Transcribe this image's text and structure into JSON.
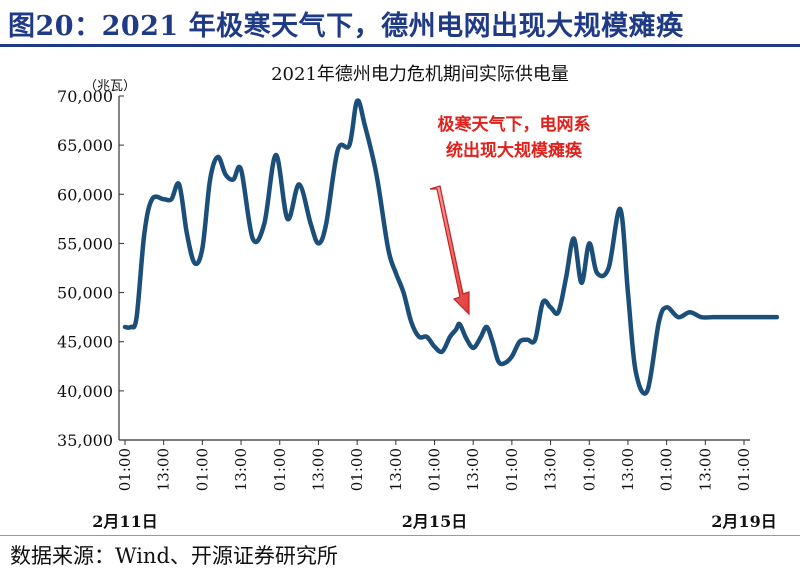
{
  "figure": {
    "label": "图20：2021 年极寒天气下，德州电网出现大规模瘫痪",
    "source": "数据来源：Wind、开源证券研究所",
    "accent_color": "#1f3a86"
  },
  "chart_data": {
    "type": "line",
    "title": "2021年德州电力危机期间实际供电量",
    "ylabel": "（兆瓦）",
    "xlabel": "",
    "ylim": [
      35000,
      70000
    ],
    "yticks": [
      35000,
      40000,
      45000,
      50000,
      55000,
      60000,
      65000,
      70000
    ],
    "ytick_labels": [
      "35,000",
      "40,000",
      "45,000",
      "50,000",
      "55,000",
      "60,000",
      "65,000",
      "70,000"
    ],
    "xtick_labels": [
      "01:00",
      "13:00",
      "01:00",
      "13:00",
      "01:00",
      "13:00",
      "01:00",
      "13:00",
      "01:00",
      "13:00",
      "01:00",
      "13:00",
      "01:00",
      "13:00",
      "01:00",
      "13:00",
      "01:00"
    ],
    "date_labels": [
      {
        "text": "2月11日",
        "tick_index": 0
      },
      {
        "text": "2月15日",
        "tick_index": 8
      },
      {
        "text": "2月19日",
        "tick_index": 16
      }
    ],
    "annotation": {
      "text_line1": "极寒天气下，电网系",
      "text_line2": "统出现大规模瘫痪",
      "color": "#e0201b"
    },
    "grid": false,
    "series": [
      {
        "name": "实际供电量",
        "color": "#1b4f7a",
        "x": [
          0.0,
          0.15,
          0.3,
          0.5,
          0.7,
          1.0,
          1.2,
          1.4,
          1.6,
          1.8,
          2.0,
          2.2,
          2.4,
          2.6,
          2.8,
          3.0,
          3.3,
          3.6,
          3.9,
          4.2,
          4.5,
          4.8,
          5.0,
          5.2,
          5.5,
          5.8,
          6.0,
          6.2,
          6.5,
          6.8,
          7.0,
          7.2,
          7.4,
          7.6,
          7.8,
          8.0,
          8.2,
          8.4,
          8.55,
          8.65,
          8.8,
          8.95,
          9.05,
          9.2,
          9.35,
          9.5,
          9.65,
          9.8,
          10.0,
          10.2,
          10.4,
          10.6,
          10.8,
          11.0,
          11.2,
          11.4,
          11.6,
          11.8,
          12.0,
          12.2,
          12.5,
          12.8,
          13.0,
          13.2,
          13.5,
          13.8,
          14.0,
          14.3,
          14.6,
          14.9,
          15.2,
          15.4,
          15.6,
          15.7,
          15.8,
          16.0,
          16.2,
          16.4,
          16.55,
          16.65,
          16.85
        ],
        "values": [
          46500,
          46500,
          47500,
          56000,
          59500,
          59500,
          59500,
          61000,
          56000,
          53000,
          54500,
          61500,
          63800,
          62000,
          61500,
          62500,
          55500,
          57000,
          64000,
          57500,
          61000,
          57000,
          55000,
          57000,
          64500,
          65000,
          69500,
          67000,
          62000,
          54500,
          52000,
          50000,
          47000,
          45500,
          45500,
          44500,
          44000,
          45500,
          46200,
          46800,
          45500,
          44500,
          44500,
          45500,
          46500,
          45000,
          43000,
          42800,
          43500,
          45000,
          45200,
          45200,
          49000,
          48500,
          48000,
          51500,
          55500,
          51000,
          55000,
          52000,
          52500,
          58500,
          50000,
          42000,
          40000,
          47000,
          48500,
          47500,
          48000,
          47500,
          47500,
          47500,
          47500,
          47500,
          47500,
          47500,
          47500,
          47500,
          47500,
          47500,
          47500
        ]
      }
    ]
  }
}
